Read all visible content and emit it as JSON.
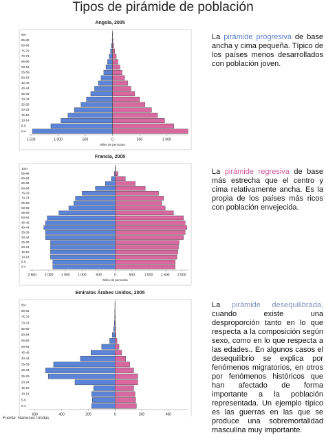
{
  "title": "Tipos de pirámide de población",
  "chart_data": [
    {
      "type": "pyramid",
      "title": "Angola, 2005",
      "x_label": "Miles de personas",
      "categories": [
        "0-4",
        "5-9",
        "10-14",
        "15-19",
        "20-24",
        "25-29",
        "30-34",
        "35-39",
        "40-44",
        "45-49",
        "50-54",
        "55-59",
        "60-64",
        "65-69",
        "70-74",
        "75-79",
        "80-84",
        "85-89",
        "90+"
      ],
      "series": [
        {
          "color": "#5b84d9",
          "values": [
            -1475,
            -1135,
            -950,
            -820,
            -700,
            -580,
            -480,
            -400,
            -330,
            -260,
            -210,
            -160,
            -120,
            -90,
            -60,
            -35,
            -18,
            -6,
            -2
          ]
        },
        {
          "color": "#d9689f",
          "values": [
            1390,
            1130,
            960,
            830,
            720,
            600,
            500,
            410,
            340,
            280,
            225,
            175,
            135,
            100,
            70,
            42,
            22,
            8,
            3
          ]
        }
      ],
      "xlim": [
        -1540,
        1400
      ],
      "xticks": [
        {
          "value": -1500,
          "label": "1 500"
        },
        {
          "value": -1000,
          "label": "1 000"
        },
        {
          "value": -500,
          "label": "500"
        },
        0,
        500,
        {
          "value": 1000,
          "label": "1 000"
        }
      ]
    },
    {
      "type": "pyramid",
      "title": "Francia, 2005",
      "x_label": "Miles de personas",
      "categories": [
        "0-4",
        "5-9",
        "10-14",
        "15-19",
        "20-24",
        "25-29",
        "30-34",
        "35-39",
        "40-44",
        "45-49",
        "50-54",
        "55-59",
        "60-64",
        "65-69",
        "70-74",
        "75-79",
        "80-84",
        "85-89",
        "90-94",
        "95-99",
        "100+"
      ],
      "series": [
        {
          "color": "#5b84d9",
          "values": [
            -1880,
            -1880,
            -1950,
            -1950,
            -1950,
            -1950,
            -2100,
            -2100,
            -2150,
            -2100,
            -2050,
            -1700,
            -1400,
            -1250,
            -1200,
            -1000,
            -600,
            -300,
            -120,
            -30,
            -3
          ]
        },
        {
          "color": "#d9689f",
          "values": [
            1800,
            1800,
            1850,
            1880,
            1900,
            1920,
            2050,
            2100,
            2150,
            2100,
            2050,
            1750,
            1500,
            1400,
            1450,
            1300,
            900,
            600,
            300,
            80,
            10
          ]
        }
      ],
      "xlim": [
        -2600,
        2200
      ],
      "xticks": [
        {
          "value": -2500,
          "label": "2 500"
        },
        {
          "value": -2000,
          "label": "2 000"
        },
        {
          "value": -1500,
          "label": "1 500"
        },
        {
          "value": -1000,
          "label": "1 000"
        },
        {
          "value": -500,
          "label": "500"
        },
        0,
        500,
        {
          "value": 1000,
          "label": "1 000"
        },
        {
          "value": 1500,
          "label": "1 500"
        },
        {
          "value": 2000,
          "label": "2 000"
        }
      ]
    },
    {
      "type": "pyramid",
      "title": "Emiratos Árabes Unidos, 2005",
      "x_label": "Miles de personas",
      "categories": [
        "0-4",
        "5-9",
        "10-14",
        "15-19",
        "20-24",
        "25-29",
        "30-34",
        "35-39",
        "40-44",
        "45-49",
        "50-54",
        "55-59",
        "60-64",
        "65-69",
        "70-74",
        "75-79",
        "80-84",
        "85+"
      ],
      "series": [
        {
          "color": "#5b84d9",
          "values": [
            -175,
            -170,
            -175,
            -160,
            -300,
            -500,
            -520,
            -460,
            -260,
            -180,
            -100,
            -40,
            -20,
            -10,
            -5,
            -3,
            -2,
            -1
          ]
        },
        {
          "color": "#d9689f",
          "values": [
            160,
            155,
            150,
            140,
            170,
            170,
            140,
            110,
            80,
            50,
            30,
            15,
            8,
            5,
            3,
            2,
            1,
            1
          ]
        }
      ],
      "xlim": [
        -645,
        550
      ],
      "xticks": [
        {
          "value": -600,
          "label": "600"
        },
        {
          "value": -400,
          "label": "400"
        },
        {
          "value": -200,
          "label": "200"
        },
        0,
        200,
        400
      ]
    }
  ],
  "paragraphs": [
    {
      "lead": "La ",
      "highlight": "pirámide progresiva",
      "rest": " de base ancha y cima pequeña. Típico de los países menos desarrollados con población joven."
    },
    {
      "lead": "La ",
      "highlight": "pirámide regresiva",
      "rest": " de base más estrecha que el centro y cima relativamente ancha. Es la propia de los países más ricos con población envejecida."
    },
    {
      "lead": "La ",
      "highlight": "pirámide desequilibrada,",
      "rest": " cuando existe una desproporción tanto en lo que respecta a la composición según sexo, como en lo que respecta a las edades.. En algunos casos el desequilibrio se explica por fenómenos migratorios, en otros por fenómenos históricos que han afectado de forma importante a la población representada. Un ejemplo típico es las guerras en las que se produce una sobremortalidad masculina muy importante."
    }
  ],
  "source": "Fuente: Naciones Unidas"
}
